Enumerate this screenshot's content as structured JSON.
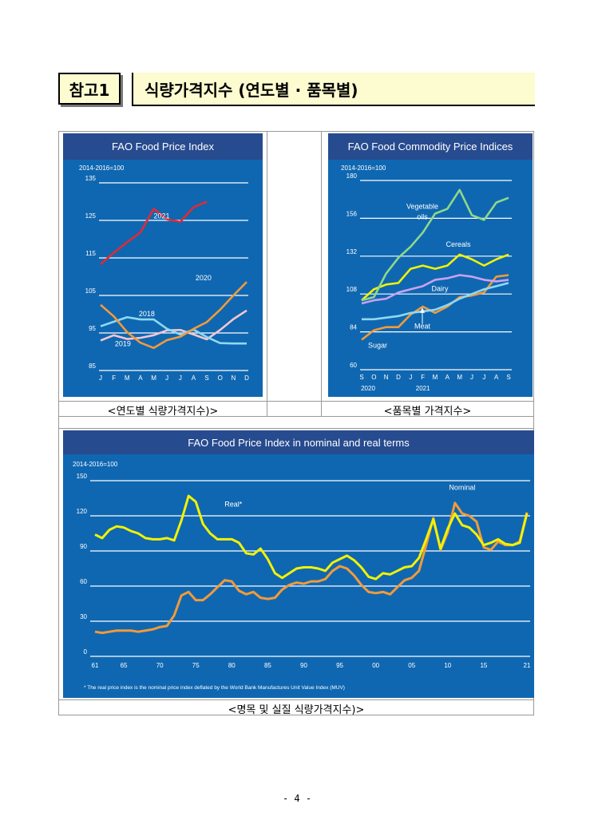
{
  "header": {
    "badge": "참고1",
    "title": "식량가격지수 (연도별 · 품목별)"
  },
  "captions": {
    "left": "<연도별 식량가격지수)>",
    "right": "<품목별 가격지수>",
    "bottom": "<명목 및 실질 식량가격지수)>"
  },
  "page_number": "- 4 -",
  "colors": {
    "panel_bg": "#0f67b1",
    "title_bar": "#274b8f",
    "red": "#e02a35",
    "orange": "#f29a3a",
    "lightblue": "#8fd8f2",
    "pink": "#f5c6d0",
    "yellow": "#f2f200",
    "green": "#8ed88a"
  },
  "chart_data": [
    {
      "type": "line",
      "title": "FAO Food Price Index",
      "unit_label": "2014-2016=100",
      "categories": [
        "J",
        "F",
        "M",
        "A",
        "M",
        "J",
        "J",
        "A",
        "S",
        "O",
        "N",
        "D"
      ],
      "ylim": [
        85,
        135
      ],
      "yticks": [
        85,
        95,
        105,
        115,
        125,
        135
      ],
      "grid": true,
      "series": [
        {
          "name": "2021",
          "color": "#e02a35",
          "values": [
            113.3,
            116.4,
            119.2,
            121.8,
            128.1,
            125.3,
            124.6,
            128.5,
            130.0,
            null,
            null,
            null
          ]
        },
        {
          "name": "2020",
          "color": "#f29a3a",
          "values": [
            102.5,
            99.4,
            95.2,
            92.4,
            91.0,
            93.1,
            94.0,
            96.1,
            97.9,
            101.2,
            105.0,
            108.6
          ]
        },
        {
          "name": "2018",
          "color": "#8fd8f2",
          "values": [
            96.8,
            98.0,
            99.2,
            98.6,
            98.6,
            96.1,
            94.6,
            95.9,
            93.9,
            92.3,
            92.2,
            92.2
          ]
        },
        {
          "name": "2019",
          "color": "#f5c6d0",
          "values": [
            93.0,
            94.4,
            93.4,
            93.7,
            94.4,
            95.7,
            95.8,
            94.6,
            93.3,
            95.8,
            98.7,
            101.0
          ]
        }
      ]
    },
    {
      "type": "line",
      "title": "FAO Food Commodity Price Indices",
      "unit_label": "2014-2016=100",
      "categories": [
        "S",
        "O",
        "N",
        "D",
        "J",
        "F",
        "M",
        "A",
        "M",
        "J",
        "J",
        "A",
        "S"
      ],
      "category_groups": [
        "2020",
        "2021"
      ],
      "ylim": [
        60,
        180
      ],
      "yticks": [
        60,
        84,
        108,
        132,
        156,
        180
      ],
      "grid": true,
      "series": [
        {
          "name": "Vegetable oils",
          "color": "#8ed88a",
          "values": [
            104,
            106,
            121,
            131,
            138,
            147,
            159,
            162,
            174,
            158,
            155,
            166,
            169
          ]
        },
        {
          "name": "Cereals",
          "color": "#f2f200",
          "values": [
            104,
            111,
            114,
            115,
            124,
            126,
            124,
            126,
            133,
            130,
            126,
            130,
            133
          ]
        },
        {
          "name": "Dairy",
          "color": "#c9a2f2",
          "values": [
            102,
            104,
            105,
            109,
            111,
            113,
            117,
            118,
            120,
            119,
            117,
            116,
            117
          ]
        },
        {
          "name": "Meat",
          "color": "#8fd8f2",
          "values": [
            92,
            92,
            93,
            94,
            96,
            97,
            98,
            101,
            105,
            108,
            111,
            113,
            115
          ]
        },
        {
          "name": "Sugar",
          "color": "#f29a3a",
          "values": [
            79,
            85,
            87,
            87,
            95,
            100,
            96,
            100,
            106,
            107,
            109,
            119,
            120
          ]
        }
      ]
    },
    {
      "type": "line",
      "title": "FAO Food Price Index in nominal and real terms",
      "unit_label": "2014-2016=100",
      "footnote": "* The real price index is the nominal price index deflated by the World Bank Manufactures Unit Value Index (MUV)",
      "x_tick_labels": [
        "61",
        "65",
        "70",
        "75",
        "80",
        "85",
        "90",
        "95",
        "00",
        "05",
        "10",
        "15",
        "21"
      ],
      "x_tick_years": [
        1961,
        1965,
        1970,
        1975,
        1980,
        1985,
        1990,
        1995,
        2000,
        2005,
        2010,
        2015,
        2021
      ],
      "ylim": [
        0,
        150
      ],
      "yticks": [
        0,
        30,
        60,
        90,
        120,
        150
      ],
      "grid": true,
      "x": [
        1961,
        1962,
        1963,
        1964,
        1965,
        1966,
        1967,
        1968,
        1969,
        1970,
        1971,
        1972,
        1973,
        1974,
        1975,
        1976,
        1977,
        1978,
        1979,
        1980,
        1981,
        1982,
        1983,
        1984,
        1985,
        1986,
        1987,
        1988,
        1989,
        1990,
        1991,
        1992,
        1993,
        1994,
        1995,
        1996,
        1997,
        1998,
        1999,
        2000,
        2001,
        2002,
        2003,
        2004,
        2005,
        2006,
        2007,
        2008,
        2009,
        2010,
        2011,
        2012,
        2013,
        2014,
        2015,
        2016,
        2017,
        2018,
        2019,
        2020,
        2021
      ],
      "series": [
        {
          "name": "Real*",
          "color": "#f2f200",
          "values": [
            104,
            101,
            108,
            111,
            110,
            107,
            105,
            101,
            100,
            100,
            101,
            99,
            116,
            137,
            132,
            113,
            105,
            100,
            100,
            100,
            97,
            88,
            87,
            92,
            83,
            71,
            67,
            71,
            75,
            76,
            76,
            75,
            73,
            80,
            83,
            86,
            82,
            76,
            68,
            66,
            71,
            70,
            73,
            76,
            77,
            84,
            100,
            117,
            92,
            109,
            122,
            112,
            110,
            104,
            95,
            97,
            100,
            96,
            95,
            97,
            122
          ]
        },
        {
          "name": "Nominal",
          "color": "#f29a3a",
          "values": [
            21,
            20,
            21,
            22,
            22,
            22,
            21,
            22,
            23,
            25,
            26,
            35,
            52,
            55,
            48,
            48,
            53,
            59,
            65,
            64,
            56,
            53,
            55,
            50,
            49,
            50,
            57,
            61,
            63,
            62,
            64,
            64,
            66,
            73,
            77,
            75,
            69,
            61,
            55,
            54,
            55,
            53,
            59,
            65,
            67,
            73,
            95,
            118,
            91,
            106,
            131,
            122,
            120,
            115,
            93,
            91,
            98,
            95,
            95,
            98,
            123
          ]
        }
      ]
    }
  ]
}
